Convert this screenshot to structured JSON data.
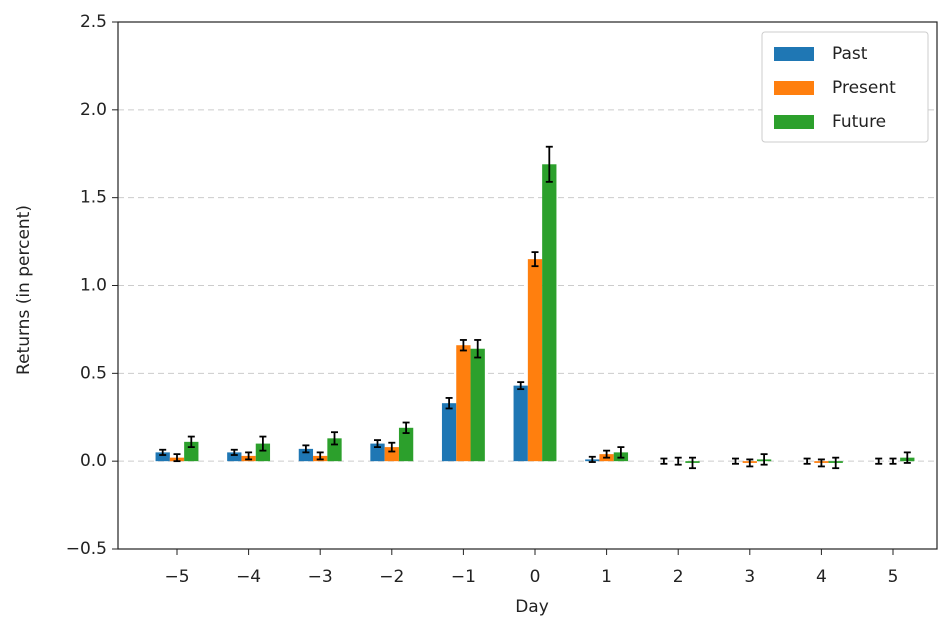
{
  "chart_data": {
    "type": "bar",
    "x_label": "Day",
    "y_label": "Returns (in percent)",
    "categories": [
      "−5",
      "−4",
      "−3",
      "−2",
      "−1",
      "0",
      "1",
      "2",
      "3",
      "4",
      "5"
    ],
    "series": [
      {
        "name": "Past",
        "color": "#1f77b4",
        "values": [
          0.05,
          0.05,
          0.07,
          0.1,
          0.33,
          0.43,
          0.01,
          0.0,
          0.0,
          0.0,
          0.0
        ],
        "errors": [
          0.015,
          0.015,
          0.02,
          0.02,
          0.03,
          0.02,
          0.015,
          0.015,
          0.015,
          0.015,
          0.015
        ]
      },
      {
        "name": "Present",
        "color": "#ff7f0e",
        "values": [
          0.02,
          0.03,
          0.03,
          0.08,
          0.66,
          1.15,
          0.04,
          0.0,
          -0.01,
          -0.01,
          0.0
        ],
        "errors": [
          0.02,
          0.02,
          0.02,
          0.025,
          0.03,
          0.04,
          0.02,
          0.02,
          0.02,
          0.02,
          0.015
        ]
      },
      {
        "name": "Future",
        "color": "#2ca02c",
        "values": [
          0.11,
          0.1,
          0.13,
          0.19,
          0.64,
          1.69,
          0.05,
          -0.01,
          0.01,
          -0.01,
          0.02
        ],
        "errors": [
          0.03,
          0.04,
          0.035,
          0.03,
          0.05,
          0.1,
          0.03,
          0.03,
          0.03,
          0.03,
          0.03
        ]
      }
    ],
    "ylim": [
      -0.5,
      2.5
    ],
    "yticks": [
      {
        "value": -0.5,
        "label": "−0.5"
      },
      {
        "value": 0,
        "label": "0.0"
      },
      0.5,
      {
        "value": 1,
        "label": "1.0"
      },
      1.5,
      {
        "value": 2,
        "label": "2.0"
      },
      2.5
    ],
    "grid": true,
    "legend": "upper-right"
  }
}
